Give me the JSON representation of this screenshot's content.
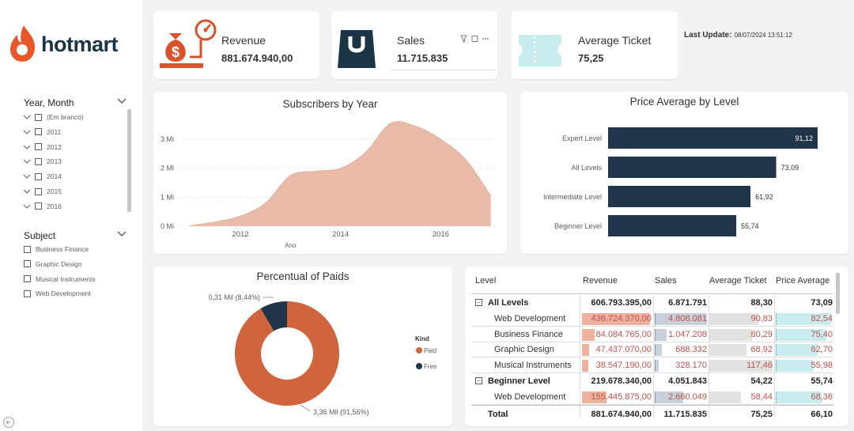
{
  "brand": {
    "name": "hotmart",
    "color": "#e8562a",
    "dark": "#1b3446"
  },
  "slicers": {
    "year_month": {
      "title": "Year, Month",
      "items": [
        "(Em branco)",
        "2011",
        "2012",
        "2013",
        "2014",
        "2015",
        "2016"
      ]
    },
    "subject": {
      "title": "Subject",
      "items": [
        "Business Finance",
        "Graphic Design",
        "Musical Instruments",
        "Web Development"
      ]
    }
  },
  "kpis": {
    "revenue": {
      "label": "Revenue",
      "value": "881.674.940,00",
      "icon": "money-bag-gauge-icon"
    },
    "sales": {
      "label": "Sales",
      "value": "11.715.835",
      "icon": "shopping-bag-icon"
    },
    "avg_ticket": {
      "label": "Average Ticket",
      "value": "75,25",
      "icon": "ticket-icon"
    }
  },
  "last_update": {
    "label": "Last Update:",
    "value": "08/07/2024 13:51:12"
  },
  "subscribers_chart": {
    "title": "Subscribers by Year",
    "xlabel": "Ano",
    "x_ticks": [
      "2012",
      "2014",
      "2016"
    ],
    "y_ticks": [
      "0 Mi",
      "1 Mi",
      "2 Mi",
      "3 Mi"
    ],
    "color": "#ebbba9"
  },
  "price_chart": {
    "title": "Price Average by Level",
    "color": "#203549",
    "bars": [
      {
        "label": "Expert Level",
        "value": 91.12,
        "display": "91,12"
      },
      {
        "label": "All Levels",
        "value": 73.09,
        "display": "73,09"
      },
      {
        "label": "Intermediate Level",
        "value": 61.92,
        "display": "61,92"
      },
      {
        "label": "Beginner Level",
        "value": 55.74,
        "display": "55,74"
      }
    ]
  },
  "paid_chart": {
    "title": "Percentual of Paids",
    "legend_title": "Kind",
    "slices": [
      {
        "name": "Paid",
        "value": 91.56,
        "label": "3,36 Mil (91,56%)",
        "color": "#d0643d"
      },
      {
        "name": "Free",
        "value": 8.44,
        "label": "0,31 Mil (8,44%)",
        "color": "#203549"
      }
    ]
  },
  "chart_data": [
    {
      "type": "area",
      "title": "Subscribers by Year",
      "xlabel": "Ano",
      "ylabel": "",
      "x": [
        2011.0,
        2011.5,
        2012.0,
        2012.5,
        2013.0,
        2013.5,
        2014.0,
        2014.5,
        2015.0,
        2015.5,
        2016.0,
        2016.5,
        2017.0
      ],
      "values": [
        0.02,
        0.15,
        0.35,
        0.8,
        1.75,
        1.9,
        2.0,
        2.55,
        3.55,
        3.45,
        3.0,
        2.3,
        1.05
      ],
      "xlim": [
        2010.8,
        2017.1
      ],
      "ylim": [
        0,
        3.6
      ]
    },
    {
      "type": "bar",
      "title": "Price Average by Level",
      "categories": [
        "Expert Level",
        "All Levels",
        "Intermediate Level",
        "Beginner Level"
      ],
      "values": [
        91.12,
        73.09,
        61.92,
        55.74
      ],
      "orientation": "horizontal"
    },
    {
      "type": "pie",
      "title": "Percentual of Paids",
      "categories": [
        "Paid",
        "Free"
      ],
      "values": [
        3.36,
        0.31
      ],
      "percent": [
        91.56,
        8.44
      ]
    }
  ],
  "matrix": {
    "headers": [
      "Level",
      "Revenue",
      "Sales",
      "Average Ticket",
      "Price Average"
    ],
    "colors": {
      "revenue": "#edb29c",
      "sales": "#c7d0db",
      "ticket": "#e1e1e1",
      "price": "#c9ecef",
      "neg_text": "#c0504d"
    },
    "rows": [
      {
        "level": "All Levels",
        "group": true,
        "revenue": "606.793.395,00",
        "sales": "6.871.791",
        "ticket": "88,30",
        "price": "73,09"
      },
      {
        "level": "Web Development",
        "group": false,
        "revenue": "436.724.370,00",
        "rv": 1.0,
        "sales": "4.808.081",
        "sv": 1.0,
        "ticket": "90,83",
        "tv": 0.77,
        "price": "82,54",
        "pv": 1.0
      },
      {
        "level": "Business Finance",
        "group": false,
        "revenue": "84.084.765,00",
        "rv": 0.19,
        "sales": "1.047.208",
        "sv": 0.22,
        "ticket": "80,29",
        "tv": 0.68,
        "price": "75,40",
        "pv": 0.91
      },
      {
        "level": "Graphic Design",
        "group": false,
        "revenue": "47.437.070,00",
        "rv": 0.11,
        "sales": "688.332",
        "sv": 0.14,
        "ticket": "68,92",
        "tv": 0.59,
        "price": "62,70",
        "pv": 0.76
      },
      {
        "level": "Musical Instruments",
        "group": false,
        "revenue": "38.547.190,00",
        "rv": 0.09,
        "sales": "328.170",
        "sv": 0.07,
        "ticket": "117,46",
        "tv": 1.0,
        "price": "55,98",
        "pv": 0.68
      },
      {
        "level": "Beginner Level",
        "group": true,
        "revenue": "219.678.340,00",
        "sales": "4.051.843",
        "ticket": "54,22",
        "price": "55,74"
      },
      {
        "level": "Web Development",
        "group": false,
        "revenue": "155.445.875,00",
        "rv": 0.36,
        "sales": "2.660.049",
        "sv": 0.55,
        "ticket": "58,44",
        "tv": 0.5,
        "price": "68,36",
        "pv": 0.83
      }
    ],
    "total": {
      "label": "Total",
      "revenue": "881.674.940,00",
      "sales": "11.715.835",
      "ticket": "75,25",
      "price": "66,10"
    }
  }
}
